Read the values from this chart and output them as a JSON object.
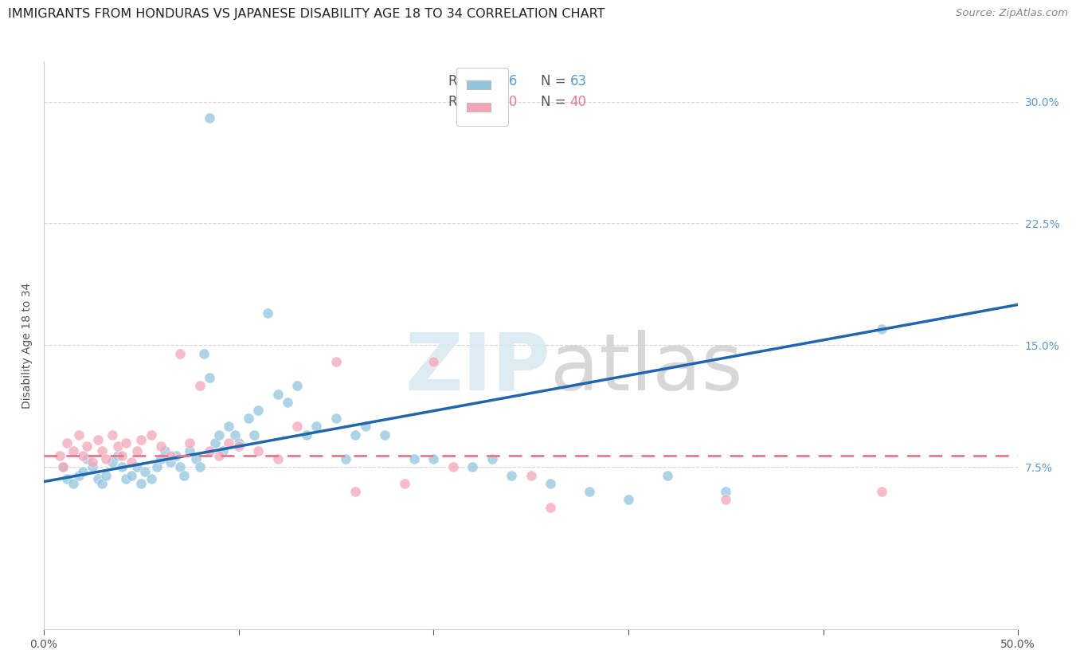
{
  "title": "IMMIGRANTS FROM HONDURAS VS JAPANESE DISABILITY AGE 18 TO 34 CORRELATION CHART",
  "source": "Source: ZipAtlas.com",
  "ylabel": "Disability Age 18 to 34",
  "xlim": [
    0.0,
    0.5
  ],
  "ylim": [
    -0.025,
    0.325
  ],
  "xticks": [
    0.0,
    0.1,
    0.2,
    0.3,
    0.4,
    0.5
  ],
  "xticklabels": [
    "0.0%",
    "",
    "",
    "",
    "",
    "50.0%"
  ],
  "yticks_right": [
    0.075,
    0.15,
    0.225,
    0.3
  ],
  "ytick_labels_right": [
    "7.5%",
    "15.0%",
    "22.5%",
    "30.0%"
  ],
  "legend_r1": "R = 0.346",
  "legend_n1": "N = 63",
  "legend_r2": "R = 0.010",
  "legend_n2": "N = 40",
  "blue_color": "#92c5de",
  "pink_color": "#f4a6b8",
  "line_blue": "#2166ac",
  "line_pink": "#e8788a",
  "watermark_zip": "ZIP",
  "watermark_atlas": "atlas",
  "background_color": "#ffffff",
  "grid_color": "#cccccc",
  "title_fontsize": 11.5,
  "axis_label_fontsize": 10,
  "tick_fontsize": 10,
  "blue_scatter_x": [
    0.01,
    0.012,
    0.015,
    0.018,
    0.02,
    0.022,
    0.025,
    0.028,
    0.03,
    0.032,
    0.035,
    0.038,
    0.04,
    0.042,
    0.045,
    0.048,
    0.05,
    0.052,
    0.055,
    0.058,
    0.06,
    0.062,
    0.065,
    0.068,
    0.07,
    0.072,
    0.075,
    0.078,
    0.08,
    0.082,
    0.085,
    0.088,
    0.09,
    0.092,
    0.095,
    0.098,
    0.1,
    0.105,
    0.108,
    0.11,
    0.115,
    0.12,
    0.125,
    0.13,
    0.135,
    0.14,
    0.15,
    0.155,
    0.16,
    0.165,
    0.175,
    0.19,
    0.2,
    0.22,
    0.23,
    0.24,
    0.26,
    0.28,
    0.3,
    0.32,
    0.35,
    0.43,
    0.085
  ],
  "blue_scatter_y": [
    0.075,
    0.068,
    0.065,
    0.07,
    0.072,
    0.08,
    0.075,
    0.068,
    0.065,
    0.07,
    0.078,
    0.082,
    0.075,
    0.068,
    0.07,
    0.075,
    0.065,
    0.072,
    0.068,
    0.075,
    0.08,
    0.085,
    0.078,
    0.082,
    0.075,
    0.07,
    0.085,
    0.08,
    0.075,
    0.145,
    0.13,
    0.09,
    0.095,
    0.085,
    0.1,
    0.095,
    0.09,
    0.105,
    0.095,
    0.11,
    0.17,
    0.12,
    0.115,
    0.125,
    0.095,
    0.1,
    0.105,
    0.08,
    0.095,
    0.1,
    0.095,
    0.08,
    0.08,
    0.075,
    0.08,
    0.07,
    0.065,
    0.06,
    0.055,
    0.07,
    0.06,
    0.16,
    0.29
  ],
  "pink_scatter_x": [
    0.008,
    0.01,
    0.012,
    0.015,
    0.018,
    0.02,
    0.022,
    0.025,
    0.028,
    0.03,
    0.032,
    0.035,
    0.038,
    0.04,
    0.042,
    0.045,
    0.048,
    0.05,
    0.055,
    0.06,
    0.065,
    0.07,
    0.075,
    0.08,
    0.085,
    0.09,
    0.095,
    0.1,
    0.11,
    0.12,
    0.13,
    0.15,
    0.16,
    0.185,
    0.2,
    0.21,
    0.25,
    0.26,
    0.35,
    0.43
  ],
  "pink_scatter_y": [
    0.082,
    0.075,
    0.09,
    0.085,
    0.095,
    0.082,
    0.088,
    0.078,
    0.092,
    0.085,
    0.08,
    0.095,
    0.088,
    0.082,
    0.09,
    0.078,
    0.085,
    0.092,
    0.095,
    0.088,
    0.082,
    0.145,
    0.09,
    0.125,
    0.085,
    0.082,
    0.09,
    0.088,
    0.085,
    0.08,
    0.1,
    0.14,
    0.06,
    0.065,
    0.14,
    0.075,
    0.07,
    0.05,
    0.055,
    0.06
  ],
  "blue_line_x0": 0.0,
  "blue_line_y0": 0.066,
  "blue_line_x1": 0.5,
  "blue_line_y1": 0.175,
  "pink_line_x0": 0.0,
  "pink_line_y0": 0.082,
  "pink_line_x1": 0.5,
  "pink_line_y1": 0.082
}
